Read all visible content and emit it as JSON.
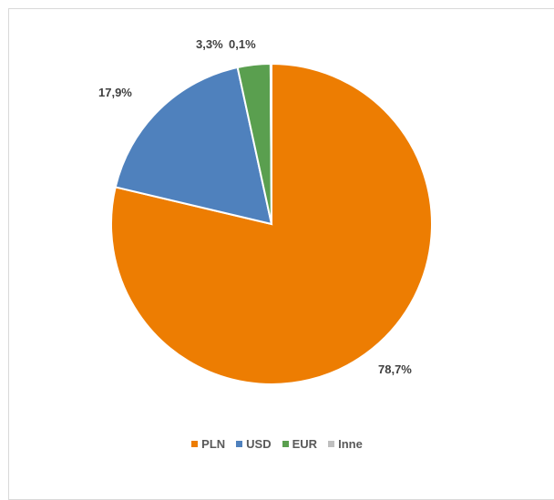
{
  "chart_data": {
    "type": "pie",
    "title": "",
    "categories": [
      "PLN",
      "USD",
      "EUR",
      "Inne"
    ],
    "values": [
      78.7,
      17.9,
      3.3,
      0.1
    ],
    "labels": [
      "78,7%",
      "17,9%",
      "3,3%",
      "0,1%"
    ],
    "colors": [
      "#ed7d02",
      "#4f81bd",
      "#5a9f4f",
      "#bfbfbf"
    ],
    "start_angle_deg": 0,
    "direction": "clockwise",
    "legend_position": "bottom"
  }
}
